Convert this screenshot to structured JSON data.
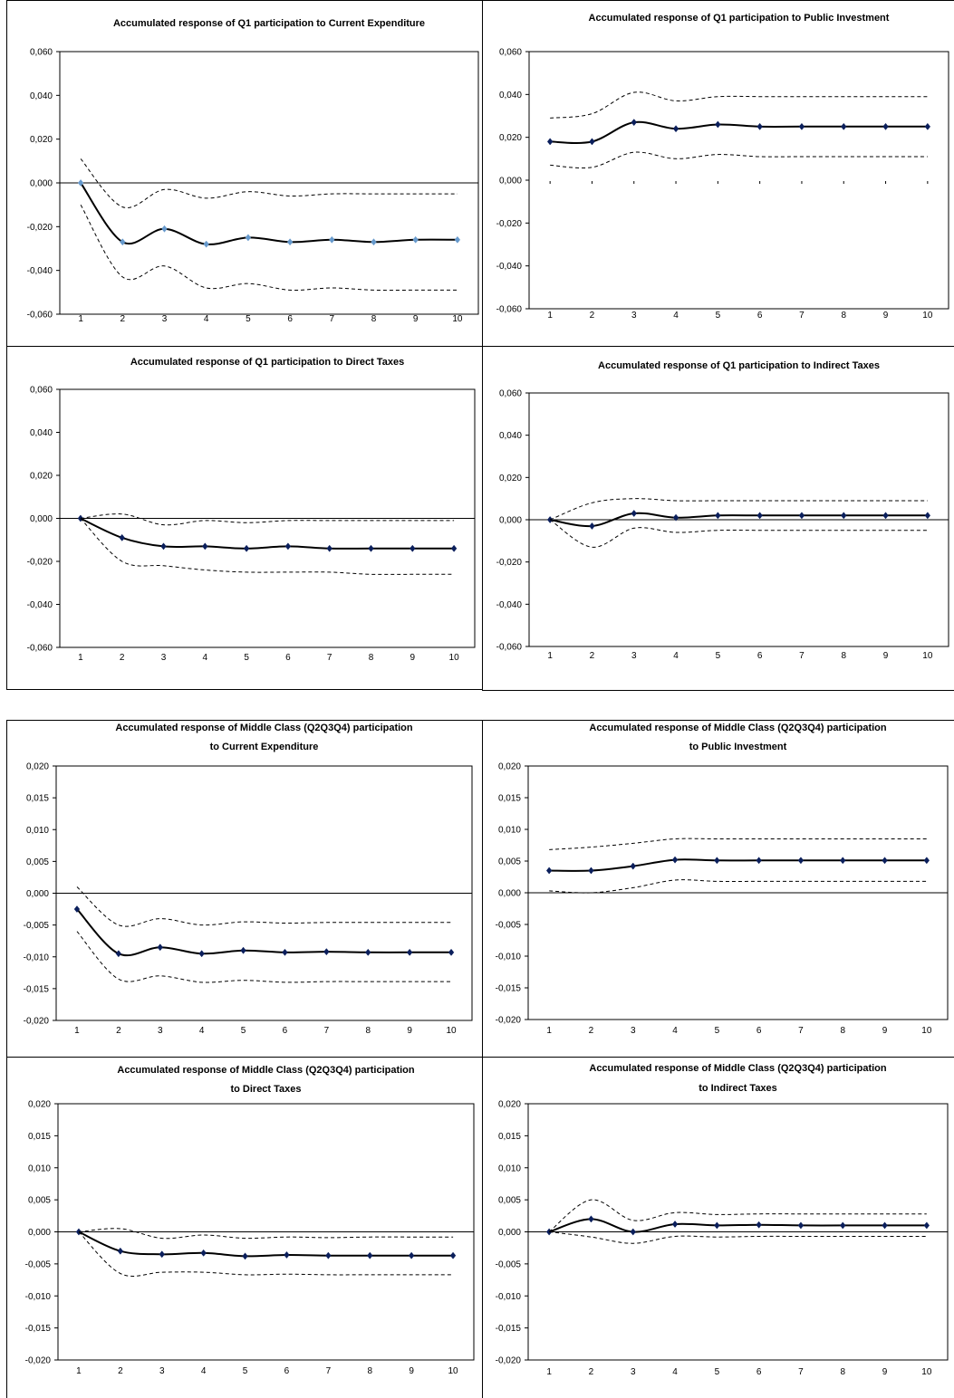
{
  "chart_data": [
    {
      "type": "line",
      "title": "Accumulated response of Q1 participation to Current Expenditure",
      "ytick_labels": [
        "0,060",
        "0,040",
        "0,020",
        "0,000",
        "-0,020",
        "-0,040",
        "-0,060"
      ],
      "ylim": [
        -0.06,
        0.06
      ],
      "x": [
        1,
        2,
        3,
        4,
        5,
        6,
        7,
        8,
        9,
        10
      ],
      "series": [
        {
          "role": "response",
          "values": [
            0.0,
            -0.027,
            -0.021,
            -0.028,
            -0.025,
            -0.027,
            -0.026,
            -0.027,
            -0.026,
            -0.026
          ]
        },
        {
          "role": "upper",
          "values": [
            0.011,
            -0.011,
            -0.003,
            -0.007,
            -0.004,
            -0.006,
            -0.005,
            -0.005,
            -0.005,
            -0.005
          ]
        },
        {
          "role": "lower",
          "values": [
            -0.01,
            -0.043,
            -0.038,
            -0.048,
            -0.046,
            -0.049,
            -0.048,
            -0.049,
            -0.049,
            -0.049
          ]
        }
      ],
      "marker_color": "#6699cc",
      "grid": false,
      "zero_line_axis": true,
      "marker_style": "diamond"
    },
    {
      "type": "line",
      "title": "Accumulated response of Q1 participation to Public Investment",
      "ytick_labels": [
        "0,060",
        "0,040",
        "0,020",
        "0,000",
        "-0,020",
        "-0,040",
        "-0,060"
      ],
      "ylim": [
        -0.06,
        0.06
      ],
      "x": [
        1,
        2,
        3,
        4,
        5,
        6,
        7,
        8,
        9,
        10
      ],
      "series": [
        {
          "role": "response",
          "values": [
            0.018,
            0.018,
            0.027,
            0.024,
            0.026,
            0.025,
            0.025,
            0.025,
            0.025,
            0.025
          ]
        },
        {
          "role": "upper",
          "values": [
            0.029,
            0.031,
            0.041,
            0.037,
            0.039,
            0.039,
            0.039,
            0.039,
            0.039,
            0.039
          ]
        },
        {
          "role": "lower",
          "values": [
            0.007,
            0.006,
            0.013,
            0.01,
            0.012,
            0.011,
            0.011,
            0.011,
            0.011,
            0.011
          ]
        }
      ],
      "marker_color": "#0b1f5c",
      "grid": false,
      "zero_line_axis": false,
      "marker_style": "diamond"
    },
    {
      "type": "line",
      "title": "Accumulated response of Q1 participation to Direct Taxes",
      "ytick_labels": [
        "0,060",
        "0,040",
        "0,020",
        "0,000",
        "-0,020",
        "-0,040",
        "-0,060"
      ],
      "ylim": [
        -0.06,
        0.06
      ],
      "x": [
        1,
        2,
        3,
        4,
        5,
        6,
        7,
        8,
        9,
        10
      ],
      "series": [
        {
          "role": "response",
          "values": [
            0.0,
            -0.009,
            -0.013,
            -0.013,
            -0.014,
            -0.013,
            -0.014,
            -0.014,
            -0.014,
            -0.014
          ]
        },
        {
          "role": "upper",
          "values": [
            0.0,
            0.002,
            -0.003,
            -0.001,
            -0.002,
            -0.001,
            -0.001,
            -0.001,
            -0.001,
            -0.001
          ]
        },
        {
          "role": "lower",
          "values": [
            0.0,
            -0.02,
            -0.022,
            -0.024,
            -0.025,
            -0.025,
            -0.025,
            -0.026,
            -0.026,
            -0.026
          ]
        }
      ],
      "marker_color": "#0b1f5c",
      "grid": false,
      "zero_line_axis": true,
      "marker_style": "diamond"
    },
    {
      "type": "line",
      "title": "Accumulated response of Q1 participation to Indirect Taxes",
      "ytick_labels": [
        "0,060",
        "0,040",
        "0,020",
        "0,000",
        "-0,020",
        "-0,040",
        "-0,060"
      ],
      "ylim": [
        -0.06,
        0.06
      ],
      "x": [
        1,
        2,
        3,
        4,
        5,
        6,
        7,
        8,
        9,
        10
      ],
      "series": [
        {
          "role": "response",
          "values": [
            0.0,
            -0.003,
            0.003,
            0.001,
            0.002,
            0.002,
            0.002,
            0.002,
            0.002,
            0.002
          ]
        },
        {
          "role": "upper",
          "values": [
            0.0,
            0.008,
            0.01,
            0.009,
            0.009,
            0.009,
            0.009,
            0.009,
            0.009,
            0.009
          ]
        },
        {
          "role": "lower",
          "values": [
            0.0,
            -0.013,
            -0.004,
            -0.006,
            -0.005,
            -0.005,
            -0.005,
            -0.005,
            -0.005,
            -0.005
          ]
        }
      ],
      "marker_color": "#0b1f5c",
      "grid": false,
      "zero_line_axis": true,
      "marker_style": "diamond"
    },
    {
      "type": "line",
      "title": "Accumulated response of Middle Class (Q2Q3Q4) participation to Current Expenditure",
      "title_lines": [
        "Accumulated response of Middle Class (Q2Q3Q4) participation",
        "to Current Expenditure"
      ],
      "ytick_labels": [
        "0,020",
        "0,015",
        "0,010",
        "0,005",
        "0,000",
        "-0,005",
        "-0,010",
        "-0,015",
        "-0,020"
      ],
      "ylim": [
        -0.02,
        0.02
      ],
      "x": [
        1,
        2,
        3,
        4,
        5,
        6,
        7,
        8,
        9,
        10
      ],
      "series": [
        {
          "role": "response",
          "values": [
            -0.0025,
            -0.0095,
            -0.0085,
            -0.0095,
            -0.009,
            -0.0093,
            -0.0092,
            -0.0093,
            -0.0093,
            -0.0093
          ]
        },
        {
          "role": "upper",
          "values": [
            0.001,
            -0.005,
            -0.004,
            -0.005,
            -0.0045,
            -0.0047,
            -0.0046,
            -0.0046,
            -0.0046,
            -0.0046
          ]
        },
        {
          "role": "lower",
          "values": [
            -0.006,
            -0.0135,
            -0.013,
            -0.014,
            -0.0137,
            -0.014,
            -0.0139,
            -0.0139,
            -0.0139,
            -0.0139
          ]
        }
      ],
      "marker_color": "#0b1f5c",
      "grid": false,
      "zero_line_axis": true,
      "marker_style": "diamond"
    },
    {
      "type": "line",
      "title": "Accumulated response of Middle Class (Q2Q3Q4) participation to Public Investment",
      "title_lines": [
        "Accumulated response of Middle Class (Q2Q3Q4) participation",
        "to Public Investment"
      ],
      "ytick_labels": [
        "0,020",
        "0,015",
        "0,010",
        "0,005",
        "0,000",
        "-0,005",
        "-0,010",
        "-0,015",
        "-0,020"
      ],
      "ylim": [
        -0.02,
        0.02
      ],
      "x": [
        1,
        2,
        3,
        4,
        5,
        6,
        7,
        8,
        9,
        10
      ],
      "series": [
        {
          "role": "response",
          "values": [
            0.0035,
            0.0035,
            0.0042,
            0.0052,
            0.0051,
            0.0051,
            0.0051,
            0.0051,
            0.0051,
            0.0051
          ]
        },
        {
          "role": "upper",
          "values": [
            0.0068,
            0.0072,
            0.0078,
            0.0085,
            0.0085,
            0.0085,
            0.0085,
            0.0085,
            0.0085,
            0.0085
          ]
        },
        {
          "role": "lower",
          "values": [
            0.0003,
            0.0,
            0.0008,
            0.002,
            0.0018,
            0.0018,
            0.0018,
            0.0018,
            0.0018,
            0.0018
          ]
        }
      ],
      "marker_color": "#0b1f5c",
      "grid": false,
      "zero_line_axis": true,
      "marker_style": "diamond"
    },
    {
      "type": "line",
      "title": "Accumulated response of Middle Class (Q2Q3Q4) participation to Direct Taxes",
      "title_lines": [
        "Accumulated response of Middle Class (Q2Q3Q4) participation",
        "to Direct Taxes"
      ],
      "ytick_labels": [
        "0,020",
        "0,015",
        "0,010",
        "0,005",
        "0,000",
        "-0,005",
        "-0,010",
        "-0,015",
        "-0,020"
      ],
      "ylim": [
        -0.02,
        0.02
      ],
      "x": [
        1,
        2,
        3,
        4,
        5,
        6,
        7,
        8,
        9,
        10
      ],
      "series": [
        {
          "role": "response",
          "values": [
            0.0,
            -0.003,
            -0.0035,
            -0.0033,
            -0.0038,
            -0.0036,
            -0.0037,
            -0.0037,
            -0.0037,
            -0.0037
          ]
        },
        {
          "role": "upper",
          "values": [
            0.0,
            0.0005,
            -0.001,
            -0.0005,
            -0.001,
            -0.0008,
            -0.0009,
            -0.0008,
            -0.0008,
            -0.0008
          ]
        },
        {
          "role": "lower",
          "values": [
            0.0,
            -0.0065,
            -0.0063,
            -0.0063,
            -0.0067,
            -0.0066,
            -0.0067,
            -0.0067,
            -0.0067,
            -0.0067
          ]
        }
      ],
      "marker_color": "#0b1f5c",
      "grid": false,
      "zero_line_axis": true,
      "marker_style": "diamond"
    },
    {
      "type": "line",
      "title": "Accumulated response of Middle Class (Q2Q3Q4) participation to Indirect Taxes",
      "title_lines": [
        "Accumulated response of Middle Class (Q2Q3Q4) participation",
        "to Indirect Taxes"
      ],
      "ytick_labels": [
        "0,020",
        "0,015",
        "0,010",
        "0,005",
        "0,000",
        "-0,005",
        "-0,010",
        "-0,015",
        "-0,020"
      ],
      "ylim": [
        -0.02,
        0.02
      ],
      "x": [
        1,
        2,
        3,
        4,
        5,
        6,
        7,
        8,
        9,
        10
      ],
      "series": [
        {
          "role": "response",
          "values": [
            0.0,
            0.002,
            0.0,
            0.0012,
            0.001,
            0.0011,
            0.001,
            0.001,
            0.001,
            0.001
          ]
        },
        {
          "role": "upper",
          "values": [
            0.0,
            0.005,
            0.0018,
            0.003,
            0.0027,
            0.0028,
            0.0028,
            0.0028,
            0.0028,
            0.0028
          ]
        },
        {
          "role": "lower",
          "values": [
            0.0,
            -0.0008,
            -0.0018,
            -0.0007,
            -0.0008,
            -0.0007,
            -0.0007,
            -0.0007,
            -0.0007,
            -0.0007
          ]
        }
      ],
      "marker_color": "#0b1f5c",
      "grid": false,
      "zero_line_axis": true,
      "marker_style": "diamond"
    }
  ]
}
